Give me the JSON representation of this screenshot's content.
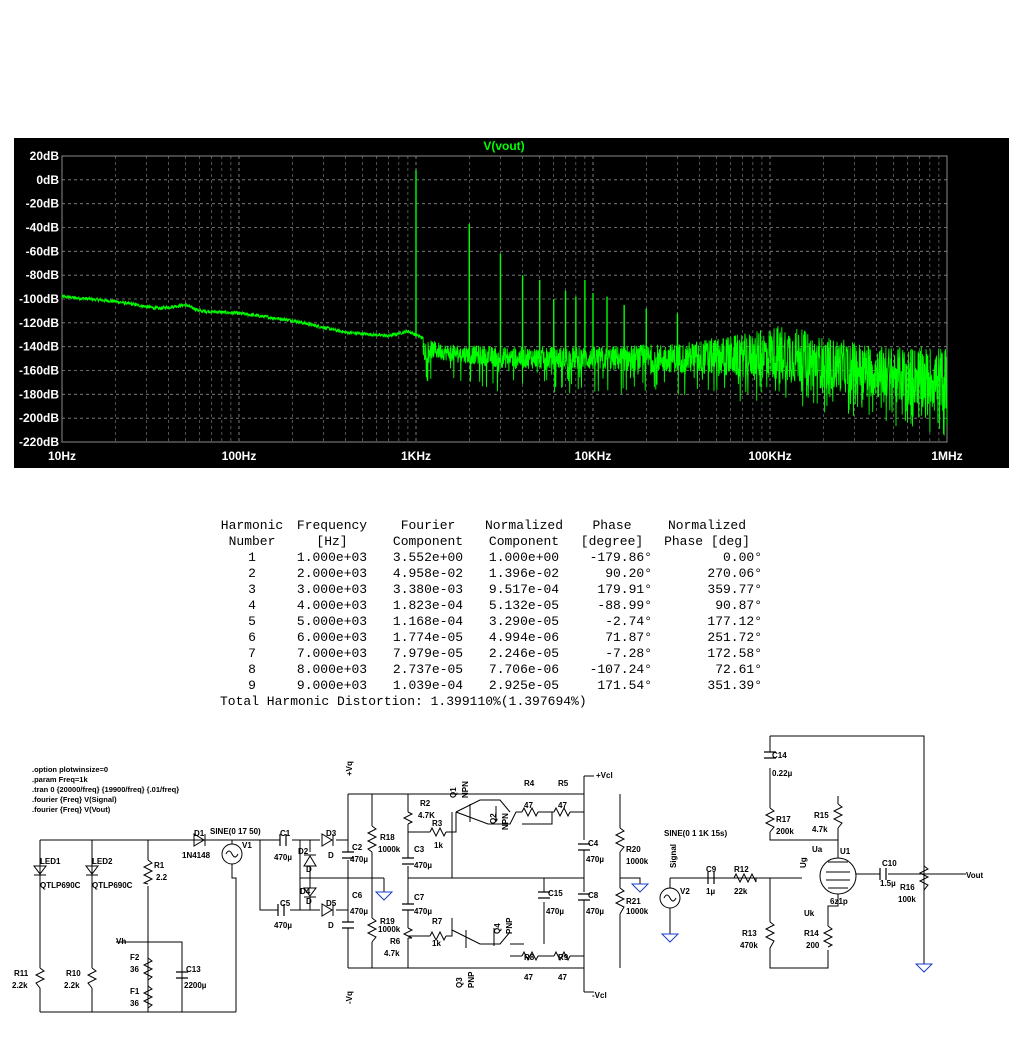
{
  "plot": {
    "title": "V(vout)",
    "colors": {
      "background": "#000000",
      "trace": "#00ff00",
      "grid": "#8a8a8a",
      "axis_text": "#ffffff",
      "title": "#00ff00"
    }
  },
  "chart_data": {
    "type": "line",
    "title": "V(vout)",
    "xlabel": "",
    "ylabel": "",
    "x_scale": "log",
    "xlim": [
      10,
      1000000
    ],
    "ylim": [
      -220,
      20
    ],
    "x_ticks": [
      10,
      100,
      1000,
      10000,
      100000,
      1000000
    ],
    "x_tick_labels": [
      "10Hz",
      "100Hz",
      "1KHz",
      "10KHz",
      "100KHz",
      "1MHz"
    ],
    "y_ticks": [
      20,
      0,
      -20,
      -40,
      -60,
      -80,
      -100,
      -120,
      -140,
      -160,
      -180,
      -200,
      -220
    ],
    "y_tick_labels": [
      "20dB",
      "0dB",
      "-20dB",
      "-40dB",
      "-60dB",
      "-80dB",
      "-100dB",
      "-120dB",
      "-140dB",
      "-160dB",
      "-180dB",
      "-200dB",
      "-220dB"
    ],
    "grid": true,
    "series": [
      {
        "name": "V(vout)",
        "color": "#00ff00",
        "floor_points": [
          [
            10,
            -98
          ],
          [
            20,
            -102
          ],
          [
            35,
            -108
          ],
          [
            50,
            -105
          ],
          [
            60,
            -110
          ],
          [
            100,
            -112
          ],
          [
            200,
            -118
          ],
          [
            400,
            -128
          ],
          [
            700,
            -131
          ],
          [
            900,
            -127
          ],
          [
            1100,
            -133
          ],
          [
            1500,
            -138
          ],
          [
            3000,
            -140
          ],
          [
            10000,
            -140
          ],
          [
            30000,
            -137
          ],
          [
            80000,
            -128
          ],
          [
            120000,
            -120
          ],
          [
            200000,
            -132
          ],
          [
            500000,
            -140
          ],
          [
            1000000,
            -140
          ]
        ],
        "noise_band_points": [
          [
            1200,
            -150
          ],
          [
            3000,
            -158
          ],
          [
            10000,
            -160
          ],
          [
            30000,
            -162
          ],
          [
            100000,
            -168
          ],
          [
            300000,
            -180
          ],
          [
            1000000,
            -195
          ]
        ],
        "harmonic_peaks": [
          [
            1000,
            8
          ],
          [
            2000,
            -37
          ],
          [
            3000,
            -62
          ],
          [
            4000,
            -80
          ],
          [
            5000,
            -84
          ],
          [
            6000,
            -100
          ],
          [
            7000,
            -93
          ],
          [
            8000,
            -98
          ],
          [
            9000,
            -84
          ],
          [
            10000,
            -95
          ],
          [
            12000,
            -98
          ],
          [
            15000,
            -105
          ],
          [
            20000,
            -108
          ],
          [
            30000,
            -112
          ]
        ]
      }
    ]
  },
  "fourier": {
    "headers_row1": [
      "Harmonic",
      "Frequency",
      "Fourier",
      "Normalized",
      "Phase",
      "Normalized"
    ],
    "headers_row2": [
      "Number",
      "[Hz]",
      "Component",
      "Component",
      "[degree]",
      "Phase [deg]"
    ],
    "rows": [
      [
        "1",
        "1.000e+03",
        "3.552e+00",
        "1.000e+00",
        "-179.86°",
        "0.00°"
      ],
      [
        "2",
        "2.000e+03",
        "4.958e-02",
        "1.396e-02",
        "90.20°",
        "270.06°"
      ],
      [
        "3",
        "3.000e+03",
        "3.380e-03",
        "9.517e-04",
        "179.91°",
        "359.77°"
      ],
      [
        "4",
        "4.000e+03",
        "1.823e-04",
        "5.132e-05",
        "-88.99°",
        "90.87°"
      ],
      [
        "5",
        "5.000e+03",
        "1.168e-04",
        "3.290e-05",
        "-2.74°",
        "177.12°"
      ],
      [
        "6",
        "6.000e+03",
        "1.774e-05",
        "4.994e-06",
        "71.87°",
        "251.72°"
      ],
      [
        "7",
        "7.000e+03",
        "7.979e-05",
        "2.246e-05",
        "-7.28°",
        "172.58°"
      ],
      [
        "8",
        "8.000e+03",
        "2.737e-05",
        "7.706e-06",
        "-107.24°",
        "72.61°"
      ],
      [
        "9",
        "9.000e+03",
        "1.039e-04",
        "2.925e-05",
        "171.54°",
        "351.39°"
      ]
    ],
    "thd": "Total Harmonic Distortion: 1.399110%(1.397694%)"
  },
  "schematic": {
    "directives": [
      ".option plotwinsize=0",
      ".param Freq=1k",
      ".tran 0 {20000/freq} {19900/freq} {.01/freq}",
      ".fourier {Freq} V(Signal)",
      ".fourier {Freq} V(Vout)"
    ],
    "labels": {
      "d1": "D1",
      "d1_model": "1N4148",
      "v1_value": "SINE(0 17 50)",
      "v1": "V1",
      "c1": "C1",
      "c1_val": "470µ",
      "c5": "C5",
      "c5_val": "470µ",
      "d2": "D2",
      "d3": "D3",
      "d4": "D4",
      "d5": "D5",
      "d": "D",
      "c2": "C2",
      "c2_val": "470µ",
      "c6": "C6",
      "c6_val": "470µ",
      "vq_top": "+Vq",
      "vq_bot": "-Vq",
      "r18": "R18",
      "r18_val": "1000k",
      "r19": "R19",
      "r19_val": "1000k",
      "r2": "R2",
      "r2_val": "4.7K",
      "r3": "R3",
      "r3_val": "1k",
      "r6": "R6",
      "r6_val": "4.7k",
      "r7": "R7",
      "r7_val": "1k",
      "c3": "C3",
      "c3_val": "470µ",
      "c7": "C7",
      "c7_val": "470µ",
      "q1": "Q1",
      "q2": "Q2",
      "q3": "Q3",
      "q4": "Q4",
      "npn": "NPN",
      "pnp": "PNP",
      "r4": "R4",
      "r4_val": "47",
      "r5": "R5",
      "r5_val": "47",
      "r8": "R8",
      "r8_val": "47",
      "r9": "R9",
      "r9_val": "47",
      "vcl_top": "+Vcl",
      "vcl_bot": "-Vcl",
      "c15": "C15",
      "c15_val": "470µ",
      "c4": "C4",
      "c4_val": "470µ",
      "c8": "C8",
      "c8_val": "470µ",
      "r20": "R20",
      "r20_val": "1000k",
      "r21": "R21",
      "r21_val": "1000k",
      "v2_value": "SINE(0 1 1K 15s)",
      "v2": "V2",
      "signal": "Signal",
      "c9": "C9",
      "c9_val": "1µ",
      "r12": "R12",
      "r12_val": "22k",
      "r13": "R13",
      "r13_val": "470k",
      "ug": "Ug",
      "ua": "Ua",
      "uk": "Uk",
      "r17": "R17",
      "r17_val": "200k",
      "r15": "R15",
      "r15_val": "4.7k",
      "r14": "R14",
      "r14_val": "200",
      "u1": "U1",
      "u1_model": "6z1p",
      "c14": "C14",
      "c14_val": "0.22µ",
      "c10": "C10",
      "c10_val": "1.5µ",
      "r16": "R16",
      "r16_val": "100k",
      "vout": "Vout",
      "led1": "LED1",
      "led2": "LED2",
      "led_model": "QTLP690C",
      "r1": "R1",
      "r1_val": "2.2",
      "vh": "Vh",
      "f2": "F2",
      "f2_val": "36",
      "f1": "F1",
      "f1_val": "36",
      "c13": "C13",
      "c13_val": "2200µ",
      "r11": "R11",
      "r11_val": "2.2k",
      "r10": "R10",
      "r10_val": "2.2k"
    }
  }
}
